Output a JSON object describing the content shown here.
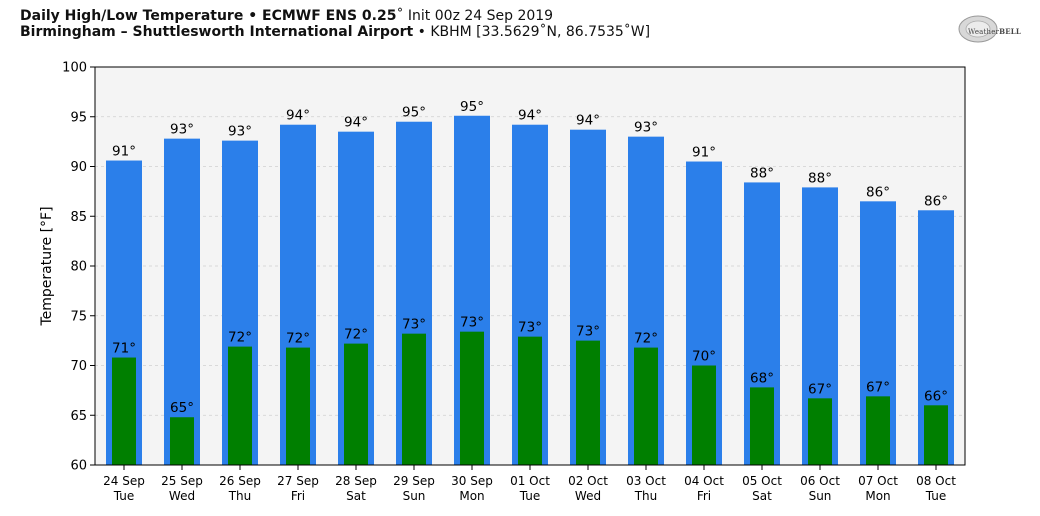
{
  "header": {
    "title_bold": "Daily High/Low Temperature • ECMWF ENS 0.25",
    "title_rest": "˚ Init 00z 24 Sep 2019",
    "location_bold": "Birmingham – Shuttlesworth International Airport",
    "location_rest": " • KBHM [33.5629˚N, 86.7535˚W]"
  },
  "logo": {
    "text_left": "Weather",
    "text_right": "BELL"
  },
  "colors": {
    "high_bar": "#2b7fea",
    "low_bar": "#007f00",
    "plot_bg": "#f4f4f4"
  },
  "chart_data": {
    "type": "bar",
    "title": "",
    "xlabel": "",
    "ylabel": "Temperature [°F]",
    "ylim": [
      60,
      100
    ],
    "yticks": [
      60,
      65,
      70,
      75,
      80,
      85,
      90,
      95,
      100
    ],
    "grid": true,
    "categories": [
      "24 Sep\nTue",
      "25 Sep\nWed",
      "26 Sep\nThu",
      "27 Sep\nFri",
      "28 Sep\nSat",
      "29 Sep\nSun",
      "30 Sep\nMon",
      "01 Oct\nTue",
      "02 Oct\nWed",
      "03 Oct\nThu",
      "04 Oct\nFri",
      "05 Oct\nSat",
      "06 Oct\nSun",
      "07 Oct\nMon",
      "08 Oct\nTue"
    ],
    "series": [
      {
        "values": [
          90.6,
          92.8,
          92.6,
          94.2,
          93.5,
          94.5,
          95.1,
          94.2,
          93.7,
          93.0,
          90.5,
          88.4,
          87.9,
          86.5,
          85.6
        ],
        "labels": [
          "91°",
          "93°",
          "93°",
          "94°",
          "94°",
          "95°",
          "95°",
          "94°",
          "94°",
          "93°",
          "91°",
          "88°",
          "88°",
          "86°",
          "86°"
        ]
      },
      {
        "values": [
          70.8,
          64.8,
          71.9,
          71.8,
          72.2,
          73.2,
          73.4,
          72.9,
          72.5,
          71.8,
          70.0,
          67.8,
          66.7,
          66.9,
          66.0
        ],
        "labels": [
          "71°",
          "65°",
          "72°",
          "72°",
          "72°",
          "73°",
          "73°",
          "73°",
          "73°",
          "72°",
          "70°",
          "68°",
          "67°",
          "67°",
          "66°"
        ]
      }
    ]
  }
}
